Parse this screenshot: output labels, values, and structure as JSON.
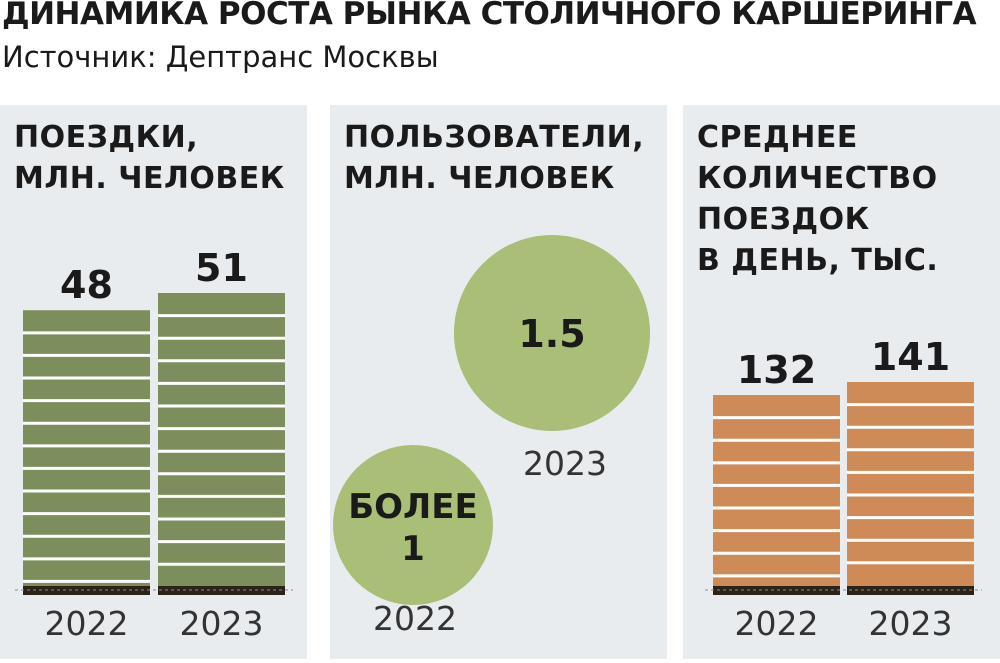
{
  "header": {
    "title": "ДИНАМИКА РОСТА РЫНКА СТОЛИЧНОГО КАРШЕРИНГА",
    "source": "Источник: Дептранс Москвы"
  },
  "colors": {
    "panel_bg": "#e9ecef",
    "green_bar": "#7c8e5c",
    "green_circle": "#a9bf78",
    "orange_bar": "#cf8b57",
    "base_line": "#2b2218"
  },
  "chart_data": [
    {
      "type": "bar",
      "title_lines": [
        "ПОЕЗДКИ,",
        "МЛН. ЧЕЛОВЕК"
      ],
      "categories": [
        "2022",
        "2023"
      ],
      "values": [
        48,
        51
      ],
      "value_labels": [
        "48",
        "51"
      ],
      "color": "#7c8e5c",
      "grid": false
    },
    {
      "type": "bubble",
      "title_lines": [
        "ПОЛЬЗОВАТЕЛИ,",
        "МЛН. ЧЕЛОВЕК"
      ],
      "categories": [
        "2022",
        "2023"
      ],
      "values": [
        1,
        1.5
      ],
      "value_labels": [
        [
          "БОЛЕЕ",
          "1"
        ],
        [
          "1.5"
        ]
      ],
      "color": "#a9bf78"
    },
    {
      "type": "bar",
      "title_lines": [
        "СРЕДНЕЕ",
        "КОЛИЧЕСТВО",
        "ПОЕЗДОК",
        "В ДЕНЬ, ТЫС."
      ],
      "categories": [
        "2022",
        "2023"
      ],
      "values": [
        132,
        141
      ],
      "value_labels": [
        "132",
        "141"
      ],
      "color": "#cf8b57",
      "grid": false
    }
  ]
}
